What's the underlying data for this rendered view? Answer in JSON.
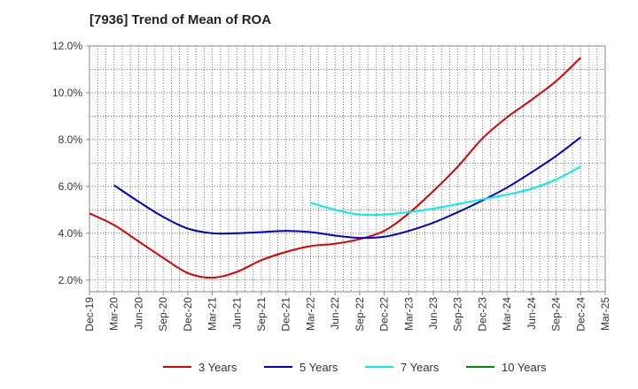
{
  "chart_data": {
    "type": "line",
    "title": "[7936]  Trend of Mean of ROA",
    "xlabel": "",
    "ylabel": "",
    "ylim": [
      1.5,
      12.0
    ],
    "y_ticks": [
      2.0,
      4.0,
      6.0,
      8.0,
      10.0,
      12.0
    ],
    "y_tick_labels": [
      "2.0%",
      "4.0%",
      "6.0%",
      "8.0%",
      "10.0%",
      "12.0%"
    ],
    "categories": [
      "Dec-19",
      "Mar-20",
      "Jun-20",
      "Sep-20",
      "Dec-20",
      "Mar-21",
      "Jun-21",
      "Sep-21",
      "Dec-21",
      "Mar-22",
      "Jun-22",
      "Sep-22",
      "Dec-22",
      "Mar-23",
      "Jun-23",
      "Sep-23",
      "Dec-23",
      "Mar-24",
      "Jun-24",
      "Sep-24",
      "Dec-24",
      "Mar-25"
    ],
    "grid": true,
    "legend_position": "bottom",
    "series": [
      {
        "name": "3 Years",
        "color": "#dd0000",
        "values": [
          4.85,
          4.35,
          3.65,
          2.95,
          2.3,
          2.1,
          2.35,
          2.85,
          3.2,
          3.45,
          3.55,
          3.75,
          4.1,
          4.85,
          5.8,
          6.85,
          8.05,
          8.95,
          9.7,
          10.5,
          11.5,
          null
        ]
      },
      {
        "name": "5 Years",
        "color": "#0000cc",
        "values": [
          null,
          6.05,
          5.35,
          4.7,
          4.2,
          4.0,
          4.0,
          4.05,
          4.1,
          4.05,
          3.9,
          3.8,
          3.85,
          4.1,
          4.45,
          4.9,
          5.4,
          5.95,
          6.6,
          7.3,
          8.1,
          null
        ]
      },
      {
        "name": "7 Years",
        "color": "#00eeee",
        "values": [
          null,
          null,
          null,
          null,
          null,
          null,
          null,
          null,
          null,
          5.3,
          5.0,
          4.8,
          4.8,
          4.9,
          5.05,
          5.25,
          5.45,
          5.65,
          5.9,
          6.3,
          6.85,
          null
        ]
      },
      {
        "name": "10 Years",
        "color": "#008800",
        "values": [
          null,
          null,
          null,
          null,
          null,
          null,
          null,
          null,
          null,
          null,
          null,
          null,
          null,
          null,
          null,
          null,
          null,
          null,
          null,
          null,
          null,
          null
        ]
      }
    ]
  }
}
